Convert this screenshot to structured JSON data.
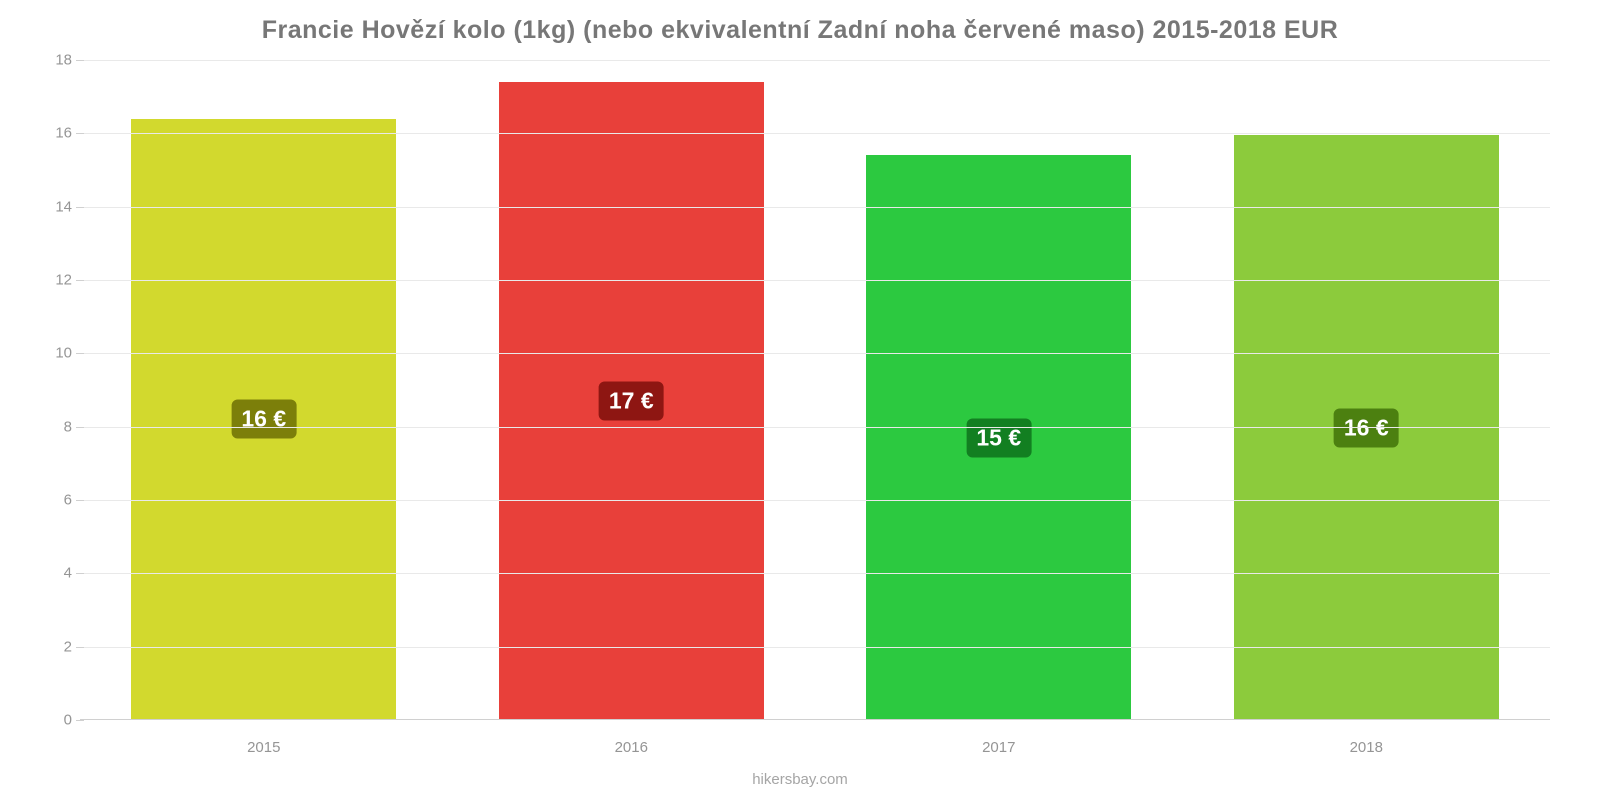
{
  "chart": {
    "type": "bar",
    "title": "Francie Hovězí kolo (1kg) (nebo ekvivalentní Zadní noha červené maso) 2015-2018 EUR",
    "title_color": "#777777",
    "title_fontsize": 25,
    "categories": [
      "2015",
      "2016",
      "2017",
      "2018"
    ],
    "values": [
      16.4,
      17.4,
      15.4,
      15.95
    ],
    "display_labels": [
      "16 €",
      "17 €",
      "15 €",
      "16 €"
    ],
    "bar_colors": [
      "#d2d92e",
      "#e8403a",
      "#2cc940",
      "#8ccb3c"
    ],
    "label_bg_colors": [
      "#7c7f0a",
      "#8e1612",
      "#127f21",
      "#4c8010"
    ],
    "label_text_color": "#ffffff",
    "label_fontsize": 23,
    "ylim": [
      0,
      18
    ],
    "yticks": [
      0,
      2,
      4,
      6,
      8,
      10,
      12,
      14,
      16,
      18
    ],
    "ytick_fontsize": 15,
    "ytick_color": "#959595",
    "xtick_fontsize": 15,
    "xtick_color": "#959595",
    "background_color": "#ffffff",
    "grid_color": "#e9e9e9",
    "axis_color": "#d0d0d0",
    "bar_width": 0.72,
    "label_border_radius": 6
  },
  "footer": {
    "text": "hikersbay.com",
    "color": "#a5a5a5",
    "fontsize": 15
  }
}
